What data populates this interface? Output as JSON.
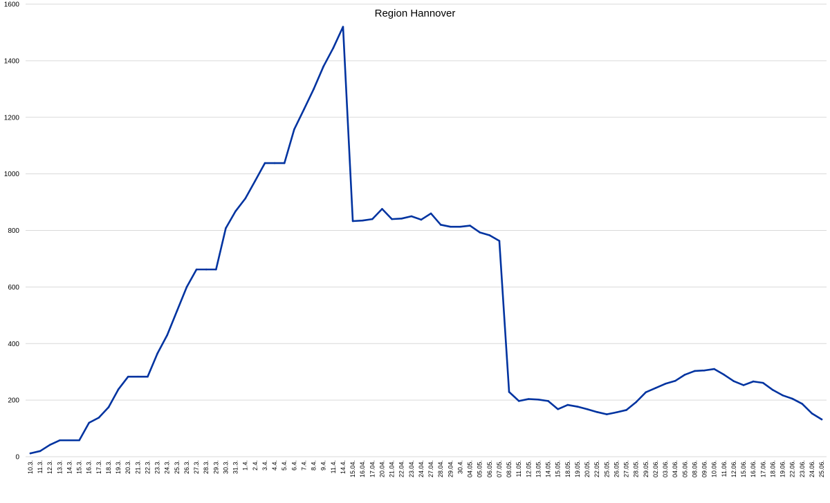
{
  "chart_data": {
    "type": "line",
    "title": "Region Hannover",
    "xlabel": "",
    "ylabel": "",
    "ylim": [
      0,
      1600
    ],
    "yticks": [
      "0",
      "200",
      "400",
      "600",
      "800",
      "1000",
      "1200",
      "1400",
      "1600"
    ],
    "grid": true,
    "legend": "none",
    "line_color": "#0033a0",
    "categories": [
      "10.3.",
      "11.3.",
      "12.3.",
      "13.3.",
      "14.3.",
      "15.3.",
      "16.3.",
      "17.3.",
      "18.3.",
      "19.3.",
      "20.3.",
      "21.3.",
      "22.3.",
      "23.3.",
      "24.3.",
      "25.3.",
      "26.3.",
      "27.3.",
      "28.3.",
      "29.3.",
      "30.3.",
      "31.3.",
      "1.4.",
      "2.4.",
      "3.4.",
      "4.4.",
      "5.4.",
      "6.4.",
      "7.4.",
      "8.4.",
      "9.4.",
      "11.4.",
      "14.4.",
      "15.04.",
      "16.04.",
      "17.04.",
      "20.04.",
      "21.04.",
      "22.04.",
      "23.04.",
      "24.04.",
      "27.04.",
      "28.04.",
      "29.04.",
      "30.4.",
      "04.05.",
      "05.05.",
      "06.05.",
      "07.05.",
      "08.05.",
      "11.05.",
      "12.05.",
      "13.05.",
      "14.05.",
      "15.05.",
      "18.05.",
      "19.05.",
      "20.05.",
      "22.05.",
      "25.05.",
      "26.05.",
      "27.05.",
      "28.05.",
      "29.05.",
      "02.06.",
      "03.06.",
      "04.06.",
      "05.06.",
      "08.06.",
      "09.06.",
      "10.06.",
      "11.06.",
      "12.06.",
      "15.06.",
      "16.06.",
      "17.06.",
      "18.06.",
      "19.06.",
      "22.06.",
      "23.06.",
      "24.06.",
      "25.06."
    ],
    "series": [
      {
        "values": [
          12,
          20,
          42,
          58,
          58,
          58,
          120,
          138,
          175,
          238,
          283,
          283,
          283,
          365,
          430,
          515,
          600,
          662,
          662,
          662,
          808,
          868,
          913,
          975,
          1038,
          1038,
          1038,
          1157,
          1228,
          1300,
          1380,
          1445,
          1520,
          833,
          835,
          840,
          876,
          840,
          842,
          850,
          838,
          860,
          820,
          813,
          813,
          817,
          793,
          783,
          763,
          229,
          197,
          204,
          202,
          197,
          168,
          183,
          177,
          168,
          158,
          150,
          157,
          165,
          193,
          228,
          243,
          258,
          268,
          290,
          303,
          305,
          310,
          290,
          267,
          253,
          266,
          261,
          236,
          217,
          205,
          187,
          153,
          132
        ]
      }
    ]
  }
}
